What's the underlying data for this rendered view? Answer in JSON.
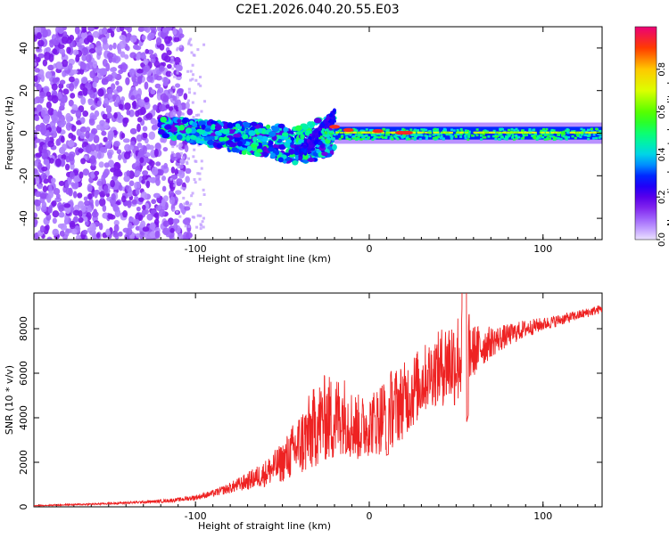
{
  "title": "C2E1.2026.040.20.55.E03",
  "chart_data": [
    {
      "type": "heatmap",
      "xlabel": "Height of straight line (km)",
      "ylabel": "Frequency (Hz)",
      "xlim": [
        -193,
        134
      ],
      "ylim": [
        -50,
        50
      ],
      "xticks": [
        -100,
        0,
        100
      ],
      "yticks": [
        -40,
        -20,
        0,
        20,
        40
      ],
      "colorbar": {
        "label": "Normalized spectral amplitude",
        "range": [
          0,
          1
        ],
        "ticks": [
          0.0,
          0.2,
          0.4,
          0.6,
          0.8
        ]
      },
      "description_regions": [
        {
          "x": [
            -193,
            -105
          ],
          "freq_spread": 50,
          "amplitude": 0.15
        },
        {
          "x": [
            -120,
            -20
          ],
          "freq_center_start": 3,
          "freq_center_end": -8,
          "amplitude": 0.35
        },
        {
          "x": [
            -30,
            134
          ],
          "freq_center": 0,
          "freq_halfwidth": 4,
          "amplitude": 0.45
        }
      ]
    },
    {
      "type": "line",
      "xlabel": "Height of straight line (km)",
      "ylabel": "SNR (10 * v/v)",
      "xlim": [
        -193,
        134
      ],
      "ylim": [
        0,
        9600
      ],
      "xticks": [
        -100,
        0,
        100
      ],
      "yticks": [
        0,
        2000,
        4000,
        6000,
        8000
      ],
      "series": [
        {
          "name": "SNR",
          "color": "#ee2222",
          "x": [
            -193,
            -180,
            -160,
            -140,
            -120,
            -110,
            -100,
            -90,
            -80,
            -70,
            -60,
            -50,
            -45,
            -40,
            -35,
            -30,
            -25,
            -20,
            -15,
            -10,
            -5,
            0,
            5,
            10,
            15,
            20,
            25,
            30,
            35,
            40,
            45,
            50,
            55,
            60,
            70,
            80,
            90,
            100,
            110,
            120,
            134
          ],
          "values": [
            50,
            80,
            120,
            180,
            250,
            320,
            420,
            600,
            850,
            1150,
            1500,
            2000,
            2400,
            2800,
            3200,
            3700,
            4000,
            3900,
            4200,
            3700,
            3500,
            3700,
            3900,
            4300,
            4500,
            4800,
            5200,
            5600,
            6000,
            6200,
            6500,
            6600,
            7000,
            7000,
            7400,
            7700,
            8000,
            8200,
            8400,
            8600,
            8900
          ],
          "noise": [
            20,
            30,
            40,
            50,
            70,
            90,
            120,
            150,
            250,
            400,
            600,
            900,
            1200,
            1500,
            1800,
            1900,
            2000,
            2000,
            1800,
            1600,
            1500,
            1400,
            1600,
            1800,
            1800,
            1700,
            1700,
            1600,
            1500,
            1700,
            2000,
            2200,
            2200,
            1200,
            700,
            500,
            400,
            300,
            260,
            220,
            200
          ]
        }
      ]
    }
  ]
}
